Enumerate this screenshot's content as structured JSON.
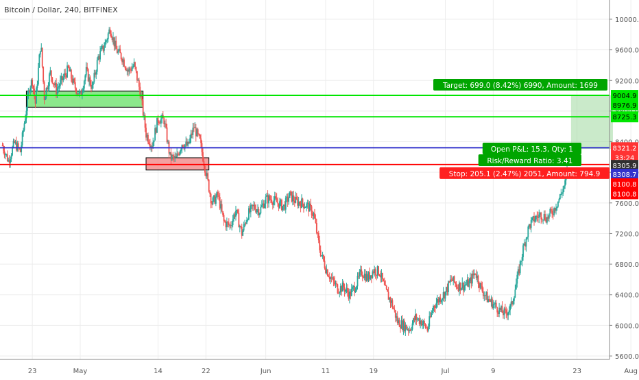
{
  "header": {
    "title": "Bitcoin / Dollar, 240, BITFINEX"
  },
  "chart_data": {
    "type": "candlestick",
    "symbol": "Bitcoin / Dollar",
    "interval": "240",
    "exchange": "BITFINEX",
    "ylim": [
      5500,
      10100
    ],
    "y_ticks": [
      5600,
      6000,
      6400,
      6800,
      7200,
      7600,
      8000,
      8400,
      8800,
      9200,
      9600,
      10000
    ],
    "x_ticks": [
      {
        "label": "23",
        "day": -8
      },
      {
        "label": "May",
        "day": 0
      },
      {
        "label": "14",
        "day": 13
      },
      {
        "label": "22",
        "day": 21
      },
      {
        "label": "Jun",
        "day": 31
      },
      {
        "label": "11",
        "day": 41
      },
      {
        "label": "19",
        "day": 49
      },
      {
        "label": "Jul",
        "day": 61
      },
      {
        "label": "9",
        "day": 69
      },
      {
        "label": "23",
        "day": 83
      },
      {
        "label": "Aug",
        "day": 92
      }
    ],
    "price_path": [
      [
        -13,
        8350
      ],
      [
        -12,
        8150
      ],
      [
        -11,
        8380
      ],
      [
        -10,
        8270
      ],
      [
        -9.2,
        8720
      ],
      [
        -8.5,
        9120
      ],
      [
        -8,
        9200
      ],
      [
        -7.5,
        8900
      ],
      [
        -6.6,
        9700
      ],
      [
        -6,
        8980
      ],
      [
        -5,
        9300
      ],
      [
        -4,
        9070
      ],
      [
        -3,
        9210
      ],
      [
        -2,
        9350
      ],
      [
        -1,
        9130
      ],
      [
        0,
        9000
      ],
      [
        1,
        9320
      ],
      [
        2,
        9100
      ],
      [
        3,
        9500
      ],
      [
        4,
        9650
      ],
      [
        5,
        9880
      ],
      [
        6,
        9600
      ],
      [
        7,
        9500
      ],
      [
        8,
        9320
      ],
      [
        9,
        9400
      ],
      [
        10,
        9060
      ],
      [
        11,
        8500
      ],
      [
        12,
        8350
      ],
      [
        13,
        8700
      ],
      [
        14,
        8680
      ],
      [
        15,
        8200
      ],
      [
        16,
        8170
      ],
      [
        17,
        8380
      ],
      [
        18,
        8340
      ],
      [
        19,
        8590
      ],
      [
        20,
        8400
      ],
      [
        21,
        8000
      ],
      [
        22,
        7600
      ],
      [
        23,
        7700
      ],
      [
        24,
        7350
      ],
      [
        25,
        7300
      ],
      [
        26,
        7500
      ],
      [
        27,
        7200
      ],
      [
        28,
        7450
      ],
      [
        29,
        7550
      ],
      [
        30,
        7500
      ],
      [
        31,
        7650
      ],
      [
        32,
        7650
      ],
      [
        33,
        7600
      ],
      [
        34,
        7550
      ],
      [
        35,
        7700
      ],
      [
        36,
        7620
      ],
      [
        37,
        7600
      ],
      [
        38,
        7560
      ],
      [
        39,
        7450
      ],
      [
        40,
        7000
      ],
      [
        41,
        6750
      ],
      [
        42,
        6600
      ],
      [
        43,
        6480
      ],
      [
        44,
        6500
      ],
      [
        45,
        6400
      ],
      [
        46,
        6520
      ],
      [
        47,
        6700
      ],
      [
        48,
        6620
      ],
      [
        49,
        6720
      ],
      [
        50,
        6700
      ],
      [
        51,
        6450
      ],
      [
        52,
        6300
      ],
      [
        53,
        6050
      ],
      [
        54,
        6000
      ],
      [
        55,
        5950
      ],
      [
        56,
        6100
      ],
      [
        57,
        6050
      ],
      [
        58,
        5950
      ],
      [
        59,
        6250
      ],
      [
        60,
        6350
      ],
      [
        61,
        6430
      ],
      [
        62,
        6600
      ],
      [
        63,
        6520
      ],
      [
        64,
        6520
      ],
      [
        65,
        6550
      ],
      [
        66,
        6700
      ],
      [
        67,
        6480
      ],
      [
        68,
        6350
      ],
      [
        69,
        6280
      ],
      [
        70,
        6200
      ],
      [
        71,
        6150
      ],
      [
        72,
        6250
      ],
      [
        73,
        6600
      ],
      [
        74,
        7000
      ],
      [
        75,
        7300
      ],
      [
        76,
        7400
      ],
      [
        77,
        7450
      ],
      [
        78,
        7400
      ],
      [
        79,
        7500
      ],
      [
        80,
        7650
      ],
      [
        81,
        7850
      ],
      [
        81.5,
        8100
      ]
    ],
    "position": {
      "target_label": "Target: 699.0 (8.42%) 6990, Amount: 1699",
      "entry_label_1": "Open P&L: 15.3, Qty: 1",
      "entry_label_2": "Risk/Reward Ratio: 3.41",
      "stop_label": "Stop: 205.1 (2.47%) 2051, Amount: 794.9",
      "target_price": 9004.9,
      "entry_price": 8305.9,
      "stop_price": 8100.8,
      "start_day": 82,
      "end_day": 89
    },
    "levels": [
      {
        "price": 9004.9,
        "color": "#00e600",
        "kind": "green-line"
      },
      {
        "price": 8725.3,
        "color": "#00e600",
        "kind": "green-line"
      },
      {
        "price": 8321.2,
        "color": "#3333cc",
        "kind": "blue-line"
      },
      {
        "price": 8100.8,
        "color": "#ff0000",
        "kind": "red-line"
      }
    ],
    "zones": [
      {
        "from_day": -9,
        "to_day": 10.5,
        "low": 8850,
        "high": 9060,
        "color": "#66e066",
        "kind": "supply-zone-green"
      },
      {
        "from_day": 11,
        "to_day": 21.5,
        "low": 8030,
        "high": 8190,
        "color": "#f08080",
        "kind": "demand-zone-red"
      }
    ],
    "price_tags": [
      {
        "text": "9004.9",
        "price": 9004.9,
        "bg": "#00e600",
        "fg": "#000000"
      },
      {
        "text": "8976.9",
        "price": 8880,
        "bg": "#00e600",
        "fg": "#000000"
      },
      {
        "text": "8725.3",
        "price": 8725.3,
        "bg": "#00e600",
        "fg": "#000000"
      },
      {
        "text": "8321.2",
        "price": 8321.2,
        "bg": "#ff3333",
        "fg": "#ffffff"
      },
      {
        "text": "33:24",
        "price": 8195,
        "bg": "#ff3333",
        "fg": "#ffffff"
      },
      {
        "text": "8305.9",
        "price": 8090,
        "bg": "#303030",
        "fg": "#ffffff"
      },
      {
        "text": "8308.7",
        "price": 7975,
        "bg": "#3333cc",
        "fg": "#ffffff"
      },
      {
        "text": "8100.8",
        "price": 7850,
        "bg": "#ff0000",
        "fg": "#ffffff"
      },
      {
        "text": "8100.8",
        "price": 7720,
        "bg": "#ff0000",
        "fg": "#ffffff"
      }
    ],
    "colors": {
      "up": "#26a69a",
      "down": "#ef5350",
      "grid": "#ededed",
      "axis": "#888888"
    }
  }
}
